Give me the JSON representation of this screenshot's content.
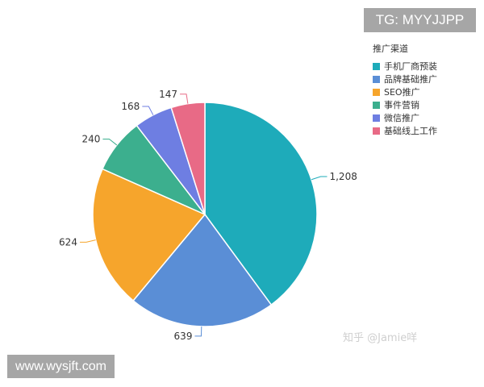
{
  "chart_data": {
    "type": "pie",
    "title": "",
    "legend_title": "推广渠道",
    "legend_position": "top-right",
    "start_angle": "top, clockwise",
    "slices": [
      {
        "name": "手机厂商预装",
        "value": 1208,
        "label": "1,208",
        "color": "#1eabba"
      },
      {
        "name": "品牌基础推广",
        "value": 639,
        "label": "639",
        "color": "#5a8ed6"
      },
      {
        "name": "SEO推广",
        "value": 624,
        "label": "624",
        "color": "#f6a52c"
      },
      {
        "name": "事件营销",
        "value": 240,
        "label": "240",
        "color": "#3caf8e"
      },
      {
        "name": "微信推广",
        "value": 168,
        "label": "168",
        "color": "#6e7ee2"
      },
      {
        "name": "基础线上工作",
        "value": 147,
        "label": "147",
        "color": "#e86a86"
      }
    ]
  },
  "watermarks": {
    "tg": "TG: MYYJJPP",
    "site": "www.wysjft.com",
    "zhihu": "知乎 @Jamie咩"
  }
}
